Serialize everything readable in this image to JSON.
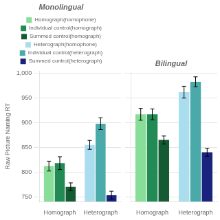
{
  "chart_data": [
    {
      "type": "bar",
      "title": "Monolingual",
      "ylabel": "Raw Picture Naming RT",
      "categories": [
        "Homograph",
        "Heterograph"
      ],
      "series": [
        {
          "name": "Homograph(homophone)",
          "color": "#88DD99",
          "values": [
            812,
            null
          ],
          "errors": [
            10,
            null
          ]
        },
        {
          "name": "Individual control(homograph)",
          "color": "#228B55",
          "values": [
            818,
            null
          ],
          "errors": [
            13,
            null
          ]
        },
        {
          "name": "Summed control(homograph)",
          "color": "#145A32",
          "values": [
            770,
            null
          ],
          "errors": [
            8,
            null
          ]
        },
        {
          "name": "Heterograph(homophone)",
          "color": "#AADDEE",
          "values": [
            null,
            855
          ],
          "errors": [
            null,
            9
          ]
        },
        {
          "name": "Individual control(heterograph)",
          "color": "#4AAAAA",
          "values": [
            null,
            898
          ],
          "errors": [
            null,
            12
          ]
        },
        {
          "name": "Summed control(heterograph)",
          "color": "#1A237E",
          "values": [
            null,
            753
          ],
          "errors": [
            null,
            8
          ]
        }
      ],
      "ylim": [
        740,
        1005
      ],
      "yticks": [
        750,
        800,
        850,
        900,
        950,
        1000
      ],
      "grid": true,
      "legend": "top"
    },
    {
      "type": "bar",
      "title": "Bilingual",
      "categories": [
        "Homograph",
        "Heterograph"
      ],
      "series": [
        {
          "name": "Homograph(homophone)",
          "color": "#88DD99",
          "values": [
            917,
            null
          ],
          "errors": [
            12,
            null
          ]
        },
        {
          "name": "Individual control(homograph)",
          "color": "#228B55",
          "values": [
            917,
            null
          ],
          "errors": [
            11,
            null
          ]
        },
        {
          "name": "Summed control(homograph)",
          "color": "#145A32",
          "values": [
            865,
            null
          ],
          "errors": [
            8,
            null
          ]
        },
        {
          "name": "Heterograph(homophone)",
          "color": "#AADDEE",
          "values": [
            null,
            962
          ],
          "errors": [
            null,
            12
          ]
        },
        {
          "name": "Individual control(heterograph)",
          "color": "#4AAAAA",
          "values": [
            null,
            983
          ],
          "errors": [
            null,
            10
          ]
        },
        {
          "name": "Summed control(heterograph)",
          "color": "#1A237E",
          "values": [
            null,
            840
          ],
          "errors": [
            null,
            8
          ]
        }
      ],
      "ylim": [
        740,
        1005
      ],
      "yticks": [
        750,
        800,
        850,
        900,
        950,
        1000
      ],
      "grid": true,
      "legend": false,
      "tick_labels": "x"
    }
  ]
}
